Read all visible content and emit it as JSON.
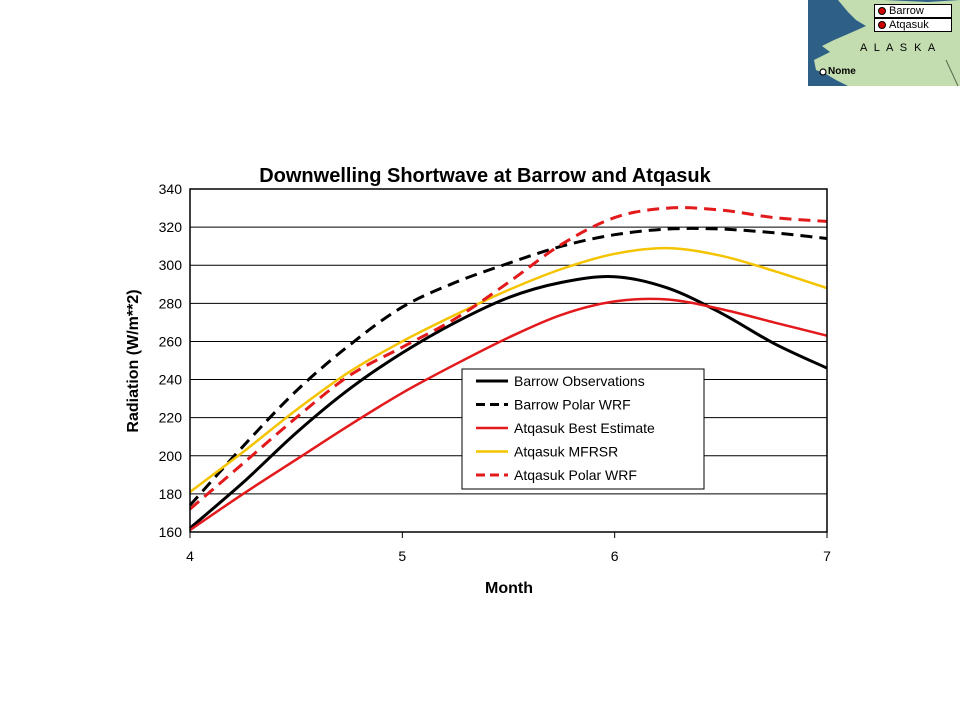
{
  "map": {
    "labels": {
      "barrow": "Barrow",
      "atqasuk": "Atqasuk",
      "alaska": "A L A S K A",
      "nome": "Nome"
    },
    "colors": {
      "water": "#2e5f86",
      "land": "#c3ddb0",
      "site_marker": "#d00000"
    }
  },
  "chart_data": {
    "type": "line",
    "title": "Downwelling Shortwave at Barrow and Atqasuk",
    "xlabel": "Month",
    "ylabel": "Radiation (W/m**2)",
    "xlim": [
      4,
      7
    ],
    "ylim": [
      160,
      340
    ],
    "xticks": [
      4,
      5,
      6,
      7
    ],
    "yticks": [
      160,
      180,
      200,
      220,
      240,
      260,
      280,
      300,
      320,
      340
    ],
    "grid": "horizontal",
    "legend_position": "lower-right",
    "series": [
      {
        "name": "Barrow Observations",
        "color": "#000000",
        "style": "solid",
        "x": [
          4.0,
          4.25,
          4.5,
          4.75,
          5.0,
          5.25,
          5.5,
          5.75,
          6.0,
          6.25,
          6.5,
          6.75,
          7.0
        ],
        "y": [
          162,
          186,
          212,
          235,
          254,
          270,
          283,
          291,
          294,
          288,
          275,
          259,
          246
        ]
      },
      {
        "name": "Barrow Polar WRF",
        "color": "#000000",
        "style": "dashed",
        "x": [
          4.0,
          4.25,
          4.5,
          4.75,
          5.0,
          5.25,
          5.5,
          5.75,
          6.0,
          6.25,
          6.5,
          6.75,
          7.0
        ],
        "y": [
          174,
          205,
          234,
          258,
          278,
          291,
          301,
          310,
          316,
          319,
          319,
          317,
          314
        ]
      },
      {
        "name": "Atqasuk Best Estimate",
        "color": "#e31a1c",
        "style": "solid",
        "x": [
          4.0,
          4.25,
          4.5,
          4.75,
          5.0,
          5.25,
          5.5,
          5.75,
          6.0,
          6.25,
          6.5,
          6.75,
          7.0
        ],
        "y": [
          161,
          180,
          198,
          216,
          233,
          248,
          262,
          274,
          281,
          282,
          277,
          270,
          263
        ]
      },
      {
        "name": "Atqasuk MFRSR",
        "color": "#f5c400",
        "style": "solid",
        "x": [
          4.0,
          4.25,
          4.5,
          4.75,
          5.0,
          5.25,
          5.5,
          5.75,
          6.0,
          6.25,
          6.5,
          6.75,
          7.0
        ],
        "y": [
          181,
          202,
          224,
          244,
          260,
          274,
          287,
          298,
          306,
          309,
          305,
          297,
          288
        ]
      },
      {
        "name": "Atqasuk Polar WRF",
        "color": "#e31a1c",
        "style": "dashed",
        "x": [
          4.0,
          4.25,
          4.5,
          4.75,
          5.0,
          5.25,
          5.5,
          5.75,
          6.0,
          6.25,
          6.5,
          6.75,
          7.0
        ],
        "y": [
          172,
          196,
          220,
          242,
          257,
          272,
          291,
          311,
          325,
          330,
          329,
          325,
          323
        ]
      }
    ]
  }
}
